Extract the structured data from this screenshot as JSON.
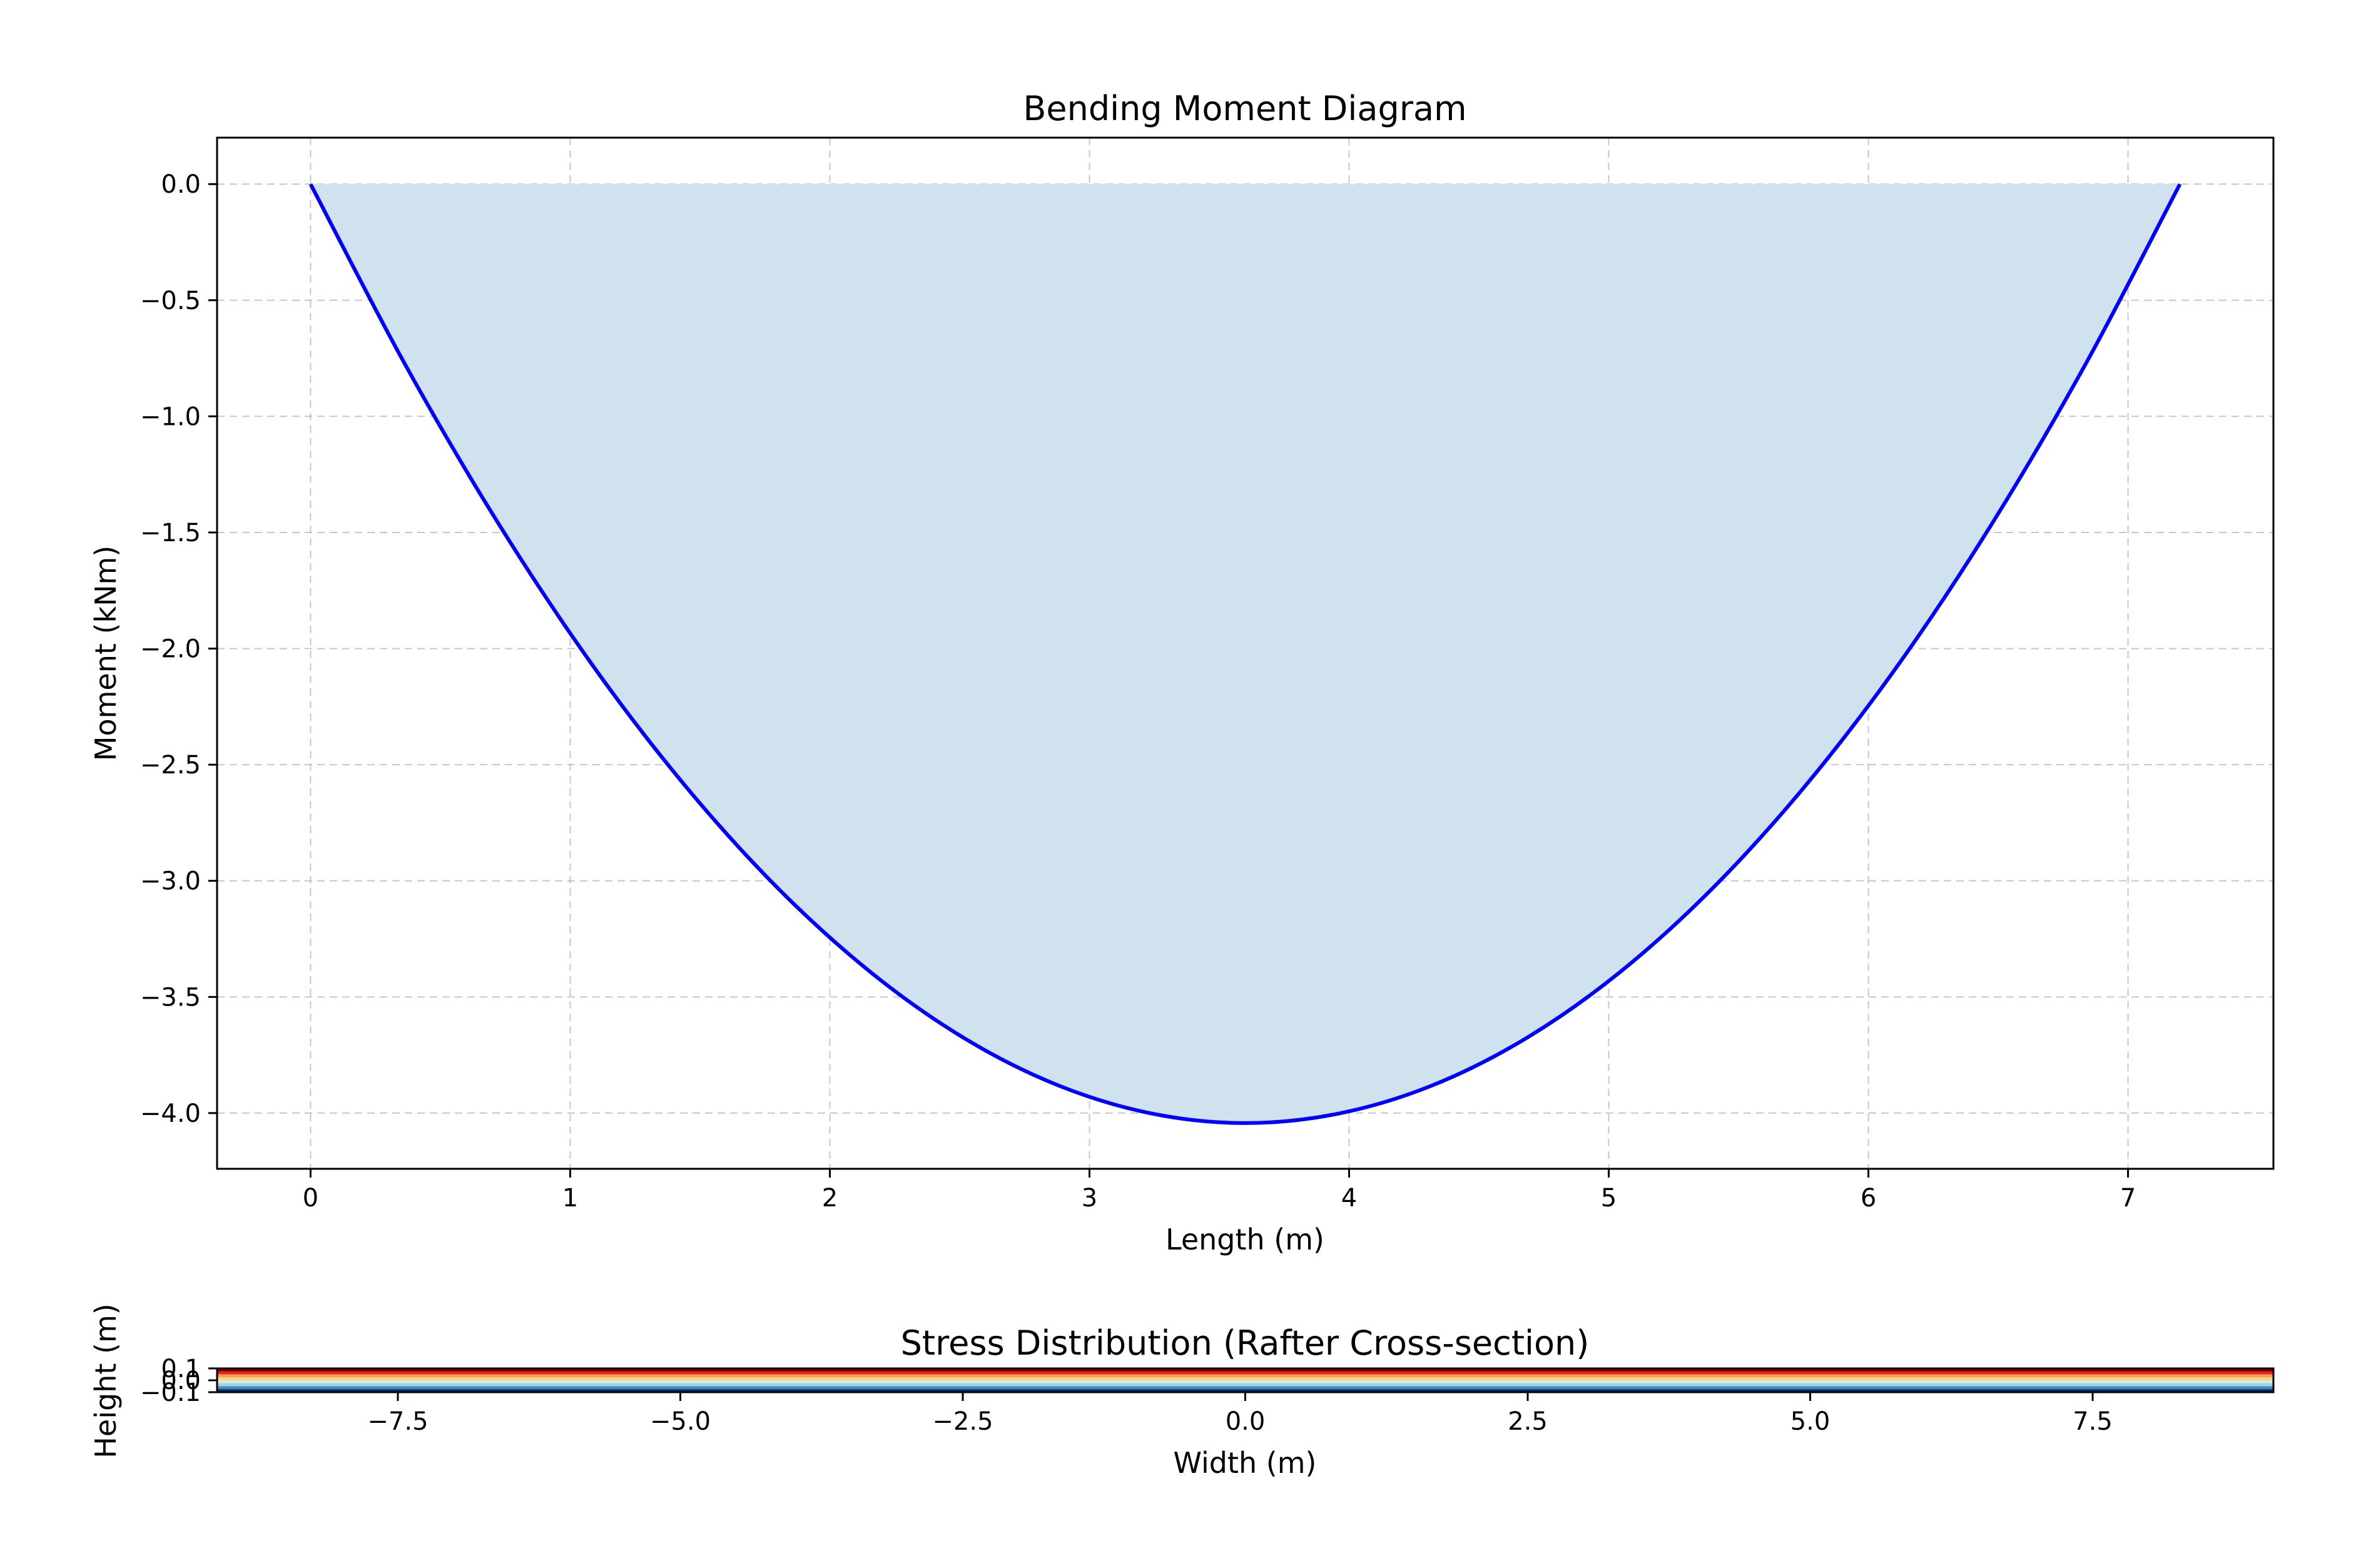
{
  "chart_data": [
    {
      "type": "area",
      "title": "Bending Moment Diagram",
      "xlabel": "Length (m)",
      "ylabel": "Moment (kNm)",
      "xlim": [
        -0.36,
        7.56
      ],
      "ylim": [
        -4.24,
        0.2
      ],
      "xticks": [
        0,
        1,
        2,
        3,
        4,
        5,
        6,
        7
      ],
      "xtick_labels": [
        "0",
        "1",
        "2",
        "3",
        "4",
        "5",
        "6",
        "7"
      ],
      "yticks": [
        0.0,
        -0.5,
        -1.0,
        -1.5,
        -2.0,
        -2.5,
        -3.0,
        -3.5,
        -4.0
      ],
      "ytick_labels": [
        "0.0",
        "−0.5",
        "−1.0",
        "−1.5",
        "−2.0",
        "−2.5",
        "−3.0",
        "−3.5",
        "−4.0"
      ],
      "grid": true,
      "series": [
        {
          "x": [
            0,
            0.36,
            0.72,
            1.08,
            1.44,
            1.8,
            2.16,
            2.52,
            2.88,
            3.24,
            3.6,
            3.96,
            4.32,
            4.68,
            5.04,
            5.4,
            5.76,
            6.12,
            6.48,
            6.84,
            7.2
          ],
          "values": [
            0,
            -0.768,
            -1.455,
            -2.062,
            -2.587,
            -3.032,
            -3.396,
            -3.679,
            -3.881,
            -4.002,
            -4.043,
            -4.002,
            -3.881,
            -3.679,
            -3.396,
            -3.032,
            -2.587,
            -2.062,
            -1.455,
            -0.768,
            0
          ],
          "line_color": "#0000ff",
          "fill_color": "#d1e2ef"
        }
      ]
    },
    {
      "type": "heatmap",
      "title": "Stress Distribution (Rafter Cross-section)",
      "xlabel": "Width (m)",
      "ylabel": "Height (m)",
      "xlim": [
        -9.1,
        9.1
      ],
      "ylim": [
        -0.1,
        0.1
      ],
      "xticks": [
        -7.5,
        -5.0,
        -2.5,
        0.0,
        2.5,
        5.0,
        7.5
      ],
      "xtick_labels": [
        "−7.5",
        "−5.0",
        "−2.5",
        "0.0",
        "2.5",
        "5.0",
        "7.5"
      ],
      "yticks": [
        0.1,
        0.0,
        -0.1
      ],
      "ytick_labels": [
        "0.1",
        "0.0",
        "−0.1"
      ],
      "colormap": "rainbow",
      "bands_top_to_bottom": [
        "#7f0000",
        "#e8231a",
        "#f4a259",
        "#f6d28a",
        "#d8ecd2",
        "#9fd3e8",
        "#3b8fc7",
        "#08306b"
      ]
    }
  ]
}
